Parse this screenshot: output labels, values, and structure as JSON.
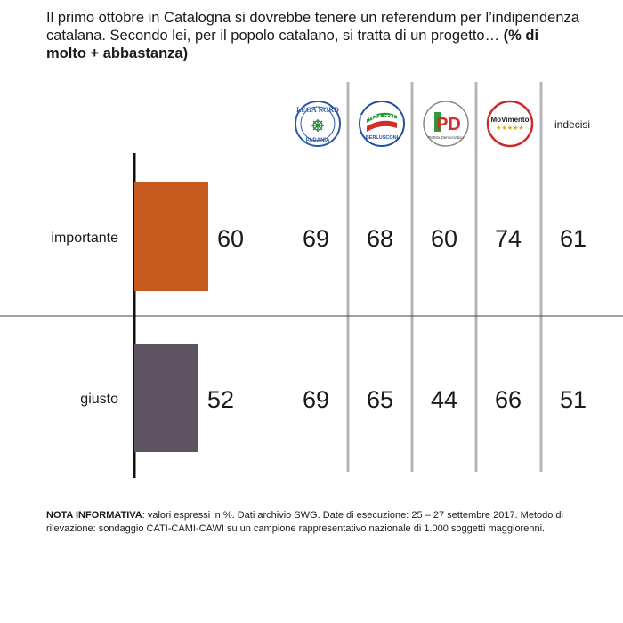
{
  "title": {
    "text": "Il primo ottobre in Catalogna si dovrebbe tenere un referendum per l’indipendenza catalana. Secondo lei, per il popolo catalano, si tratta di un progetto…",
    "emphasis": "(% di molto + abbastanza)"
  },
  "parties": [
    {
      "name": "Lega Nord",
      "logo_text": "LEGA NORD",
      "logo_subtext": "PADANIA"
    },
    {
      "name": "Forza Italia",
      "logo_text": "FORZA ITALIA",
      "logo_subtext": "BERLUSCONI"
    },
    {
      "name": "Partito Democratico",
      "logo_text": "PD",
      "logo_subtext": "Partito Democratico"
    },
    {
      "name": "Movimento 5 Stelle",
      "logo_text": "MoVimento",
      "logo_subtext": "★★★★★"
    },
    {
      "name": "indecisi",
      "logo_text": "indecisi",
      "logo_subtext": ""
    }
  ],
  "colors": {
    "importante": "#c65a1e",
    "giusto": "#5c5260",
    "gridline": "#b5b5b5",
    "axis": "#111111"
  },
  "chart_data": {
    "type": "bar",
    "orientation": "horizontal",
    "categories": [
      "importante",
      "giusto"
    ],
    "values": [
      60,
      52
    ],
    "xlim": [
      0,
      100
    ],
    "table": {
      "columns": [
        "Lega Nord",
        "Forza Italia",
        "Partito Democratico",
        "Movimento 5 Stelle",
        "indecisi"
      ],
      "rows": [
        {
          "category": "importante",
          "values": [
            69,
            68,
            60,
            74,
            61
          ]
        },
        {
          "category": "giusto",
          "values": [
            69,
            65,
            44,
            66,
            51
          ]
        }
      ]
    }
  },
  "note": {
    "label": "NOTA INFORMATIVA",
    "text": ": valori espressi in %. Dati archivio SWG. Date di esecuzione: 25 – 27 settembre 2017. Metodo di rilevazione: sondaggio CATI-CAMI-CAWI su un campione rappresentativo nazionale di 1.000 soggetti maggiorenni."
  }
}
